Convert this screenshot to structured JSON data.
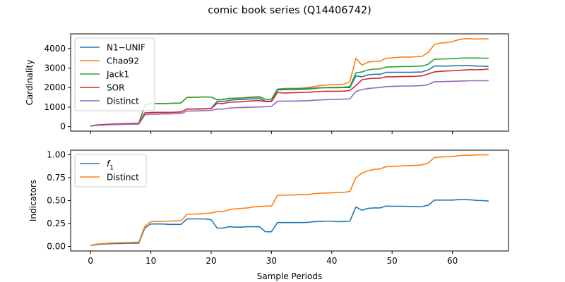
{
  "figure": {
    "title": "comic book series (Q14406742)"
  },
  "chart_data": [
    {
      "type": "line",
      "xlabel": "",
      "ylabel": "Cardinality",
      "xlim": [
        -3.3,
        69.3
      ],
      "ylim": [
        -230,
        4750
      ],
      "xticks": [
        0,
        10,
        20,
        30,
        40,
        50,
        60
      ],
      "xtick_labels_visible": false,
      "yticks": [
        0,
        1000,
        2000,
        3000,
        4000
      ],
      "ytick_labels": [
        "0",
        "1000",
        "2000",
        "3000",
        "4000"
      ],
      "grid": false,
      "legend": "top-left",
      "series": [
        {
          "name": "N1−UNIF",
          "color": "#1f77b4",
          "x": [
            0,
            1,
            2,
            3,
            4,
            5,
            6,
            7,
            8,
            9,
            10,
            11,
            12,
            13,
            14,
            15,
            16,
            17,
            18,
            19,
            20,
            21,
            22,
            23,
            24,
            25,
            26,
            27,
            28,
            29,
            30,
            31,
            32,
            33,
            34,
            35,
            36,
            37,
            38,
            39,
            40,
            41,
            42,
            43,
            44,
            45,
            46,
            47,
            48,
            49,
            50,
            51,
            52,
            53,
            54,
            55,
            56,
            57,
            58,
            59,
            60,
            61,
            62,
            63,
            64,
            65,
            66
          ],
          "values": [
            30,
            80,
            100,
            120,
            130,
            140,
            150,
            160,
            160,
            700,
            720,
            730,
            730,
            730,
            740,
            750,
            900,
            900,
            910,
            920,
            930,
            1300,
            1280,
            1350,
            1380,
            1390,
            1410,
            1420,
            1430,
            1300,
            1300,
            1880,
            1890,
            1900,
            1900,
            1910,
            1920,
            1950,
            1980,
            1990,
            1990,
            1990,
            2000,
            2000,
            2600,
            2550,
            2650,
            2680,
            2680,
            2780,
            2780,
            2780,
            2780,
            2780,
            2790,
            2800,
            2900,
            3100,
            3100,
            3100,
            3110,
            3120,
            3120,
            3120,
            3100,
            3090,
            3080
          ]
        },
        {
          "name": "Chao92",
          "color": "#ff7f0e",
          "x": [
            0,
            1,
            2,
            3,
            4,
            5,
            6,
            7,
            8,
            9,
            10,
            11,
            12,
            13,
            14,
            15,
            16,
            17,
            18,
            19,
            20,
            21,
            22,
            23,
            24,
            25,
            26,
            27,
            28,
            29,
            30,
            31,
            32,
            33,
            34,
            35,
            36,
            37,
            38,
            39,
            40,
            41,
            42,
            43,
            44,
            45,
            46,
            47,
            48,
            49,
            50,
            51,
            52,
            53,
            54,
            55,
            56,
            57,
            58,
            59,
            60,
            61,
            62,
            63,
            64,
            65,
            66
          ],
          "values": [
            30,
            80,
            100,
            120,
            130,
            140,
            150,
            160,
            160,
            1100,
            1180,
            1180,
            1180,
            1190,
            1200,
            1210,
            1500,
            1500,
            1510,
            1520,
            1510,
            1380,
            1400,
            1450,
            1460,
            1470,
            1500,
            1520,
            1540,
            1400,
            1400,
            1920,
            1950,
            1960,
            1960,
            1970,
            2000,
            2050,
            2100,
            2130,
            2150,
            2150,
            2170,
            2300,
            3500,
            3150,
            3300,
            3350,
            3350,
            3500,
            3520,
            3550,
            3560,
            3560,
            3580,
            3600,
            3800,
            4200,
            4280,
            4300,
            4350,
            4450,
            4500,
            4500,
            4480,
            4490,
            4500
          ]
        },
        {
          "name": "Jack1",
          "color": "#2ca02c",
          "x": [
            0,
            1,
            2,
            3,
            4,
            5,
            6,
            7,
            8,
            9,
            10,
            11,
            12,
            13,
            14,
            15,
            16,
            17,
            18,
            19,
            20,
            21,
            22,
            23,
            24,
            25,
            26,
            27,
            28,
            29,
            30,
            31,
            32,
            33,
            34,
            35,
            36,
            37,
            38,
            39,
            40,
            41,
            42,
            43,
            44,
            45,
            46,
            47,
            48,
            49,
            50,
            51,
            52,
            53,
            54,
            55,
            56,
            57,
            58,
            59,
            60,
            61,
            62,
            63,
            64,
            65,
            66
          ],
          "values": [
            30,
            80,
            100,
            120,
            130,
            140,
            150,
            160,
            160,
            1100,
            1180,
            1180,
            1180,
            1190,
            1200,
            1210,
            1500,
            1500,
            1510,
            1520,
            1510,
            1380,
            1380,
            1450,
            1450,
            1460,
            1480,
            1500,
            1510,
            1400,
            1400,
            1920,
            1930,
            1940,
            1940,
            1950,
            1960,
            1970,
            1990,
            2000,
            2010,
            2010,
            2020,
            2050,
            2750,
            2800,
            2900,
            2950,
            2950,
            3050,
            3060,
            3070,
            3080,
            3080,
            3090,
            3100,
            3200,
            3450,
            3460,
            3470,
            3480,
            3500,
            3510,
            3510,
            3510,
            3505,
            3500
          ]
        },
        {
          "name": "SOR",
          "color": "#d62728",
          "x": [
            0,
            1,
            2,
            3,
            4,
            5,
            6,
            7,
            8,
            9,
            10,
            11,
            12,
            13,
            14,
            15,
            16,
            17,
            18,
            19,
            20,
            21,
            22,
            23,
            24,
            25,
            26,
            27,
            28,
            29,
            30,
            31,
            32,
            33,
            34,
            35,
            36,
            37,
            38,
            39,
            40,
            41,
            42,
            43,
            44,
            45,
            46,
            47,
            48,
            49,
            50,
            51,
            52,
            53,
            54,
            55,
            56,
            57,
            58,
            59,
            60,
            61,
            62,
            63,
            64,
            65,
            66
          ],
          "values": [
            30,
            80,
            100,
            120,
            130,
            140,
            150,
            160,
            160,
            700,
            720,
            730,
            730,
            730,
            740,
            750,
            900,
            900,
            900,
            910,
            920,
            1200,
            1180,
            1250,
            1260,
            1270,
            1300,
            1320,
            1330,
            1280,
            1280,
            1750,
            1720,
            1730,
            1740,
            1750,
            1760,
            1780,
            1800,
            1810,
            1810,
            1810,
            1820,
            1850,
            2100,
            2400,
            2450,
            2480,
            2480,
            2550,
            2550,
            2560,
            2570,
            2570,
            2580,
            2600,
            2700,
            2800,
            2830,
            2850,
            2860,
            2880,
            2900,
            2920,
            2910,
            2920,
            2950
          ]
        },
        {
          "name": "Distinct",
          "color": "#9467bd",
          "x": [
            0,
            1,
            2,
            3,
            4,
            5,
            6,
            7,
            8,
            9,
            10,
            11,
            12,
            13,
            14,
            15,
            16,
            17,
            18,
            19,
            20,
            21,
            22,
            23,
            24,
            25,
            26,
            27,
            28,
            29,
            30,
            31,
            32,
            33,
            34,
            35,
            36,
            37,
            38,
            39,
            40,
            41,
            42,
            43,
            44,
            45,
            46,
            47,
            48,
            49,
            50,
            51,
            52,
            53,
            54,
            55,
            56,
            57,
            58,
            59,
            60,
            61,
            62,
            63,
            64,
            65,
            66
          ],
          "values": [
            30,
            60,
            80,
            90,
            100,
            110,
            120,
            130,
            130,
            600,
            640,
            640,
            650,
            650,
            660,
            670,
            800,
            800,
            810,
            820,
            830,
            900,
            900,
            950,
            970,
            980,
            990,
            1000,
            1010,
            1020,
            1030,
            1300,
            1300,
            1310,
            1310,
            1320,
            1330,
            1350,
            1370,
            1380,
            1390,
            1400,
            1410,
            1420,
            1800,
            1900,
            1950,
            1980,
            2000,
            2050,
            2060,
            2070,
            2080,
            2080,
            2090,
            2100,
            2150,
            2300,
            2300,
            2310,
            2320,
            2330,
            2340,
            2350,
            2350,
            2350,
            2350
          ]
        }
      ]
    },
    {
      "type": "line",
      "xlabel": "Sample Periods",
      "ylabel": "Indicators",
      "xlim": [
        -3.3,
        69.3
      ],
      "ylim": [
        -0.05,
        1.05
      ],
      "xticks": [
        0,
        10,
        20,
        30,
        40,
        50,
        60
      ],
      "xtick_labels": [
        "0",
        "10",
        "20",
        "30",
        "40",
        "50",
        "60"
      ],
      "yticks": [
        0,
        0.25,
        0.5,
        0.75,
        1.0
      ],
      "ytick_labels": [
        "0.00",
        "0.25",
        "0.50",
        "0.75",
        "1.00"
      ],
      "grid": false,
      "legend": "top-left",
      "series": [
        {
          "name": "f",
          "name_subscript": "1",
          "color": "#1f77b4",
          "x": [
            0,
            1,
            2,
            3,
            4,
            5,
            6,
            7,
            8,
            9,
            10,
            11,
            12,
            13,
            14,
            15,
            16,
            17,
            18,
            19,
            20,
            21,
            22,
            23,
            24,
            25,
            26,
            27,
            28,
            29,
            30,
            31,
            32,
            33,
            34,
            35,
            36,
            37,
            38,
            39,
            40,
            41,
            42,
            43,
            44,
            45,
            46,
            47,
            48,
            49,
            50,
            51,
            52,
            53,
            54,
            55,
            56,
            57,
            58,
            59,
            60,
            61,
            62,
            63,
            64,
            65,
            66
          ],
          "values": [
            0.01,
            0.02,
            0.025,
            0.028,
            0.03,
            0.032,
            0.034,
            0.035,
            0.035,
            0.2,
            0.245,
            0.245,
            0.245,
            0.24,
            0.24,
            0.24,
            0.3,
            0.3,
            0.3,
            0.3,
            0.29,
            0.2,
            0.2,
            0.215,
            0.21,
            0.21,
            0.215,
            0.215,
            0.215,
            0.16,
            0.16,
            0.26,
            0.26,
            0.26,
            0.26,
            0.26,
            0.262,
            0.27,
            0.272,
            0.275,
            0.275,
            0.27,
            0.272,
            0.275,
            0.43,
            0.395,
            0.415,
            0.42,
            0.42,
            0.44,
            0.438,
            0.438,
            0.438,
            0.436,
            0.434,
            0.435,
            0.45,
            0.505,
            0.505,
            0.505,
            0.505,
            0.51,
            0.51,
            0.508,
            0.502,
            0.5,
            0.495
          ]
        },
        {
          "name": "Distinct",
          "color": "#ff7f0e",
          "x": [
            0,
            1,
            2,
            3,
            4,
            5,
            6,
            7,
            8,
            9,
            10,
            11,
            12,
            13,
            14,
            15,
            16,
            17,
            18,
            19,
            20,
            21,
            22,
            23,
            24,
            25,
            26,
            27,
            28,
            29,
            30,
            31,
            32,
            33,
            34,
            35,
            36,
            37,
            38,
            39,
            40,
            41,
            42,
            43,
            44,
            45,
            46,
            47,
            48,
            49,
            50,
            51,
            52,
            53,
            54,
            55,
            56,
            57,
            58,
            59,
            60,
            61,
            62,
            63,
            64,
            65,
            66
          ],
          "values": [
            0.01,
            0.025,
            0.03,
            0.035,
            0.038,
            0.04,
            0.042,
            0.045,
            0.045,
            0.22,
            0.27,
            0.272,
            0.274,
            0.275,
            0.278,
            0.28,
            0.35,
            0.352,
            0.355,
            0.36,
            0.365,
            0.38,
            0.38,
            0.4,
            0.41,
            0.415,
            0.42,
            0.43,
            0.435,
            0.44,
            0.44,
            0.555,
            0.56,
            0.56,
            0.562,
            0.565,
            0.565,
            0.575,
            0.58,
            0.582,
            0.585,
            0.588,
            0.59,
            0.6,
            0.75,
            0.8,
            0.825,
            0.84,
            0.845,
            0.87,
            0.872,
            0.875,
            0.88,
            0.882,
            0.885,
            0.89,
            0.91,
            0.97,
            0.975,
            0.978,
            0.98,
            0.99,
            0.995,
            0.995,
            0.998,
            0.999,
            1.0
          ]
        }
      ]
    }
  ]
}
